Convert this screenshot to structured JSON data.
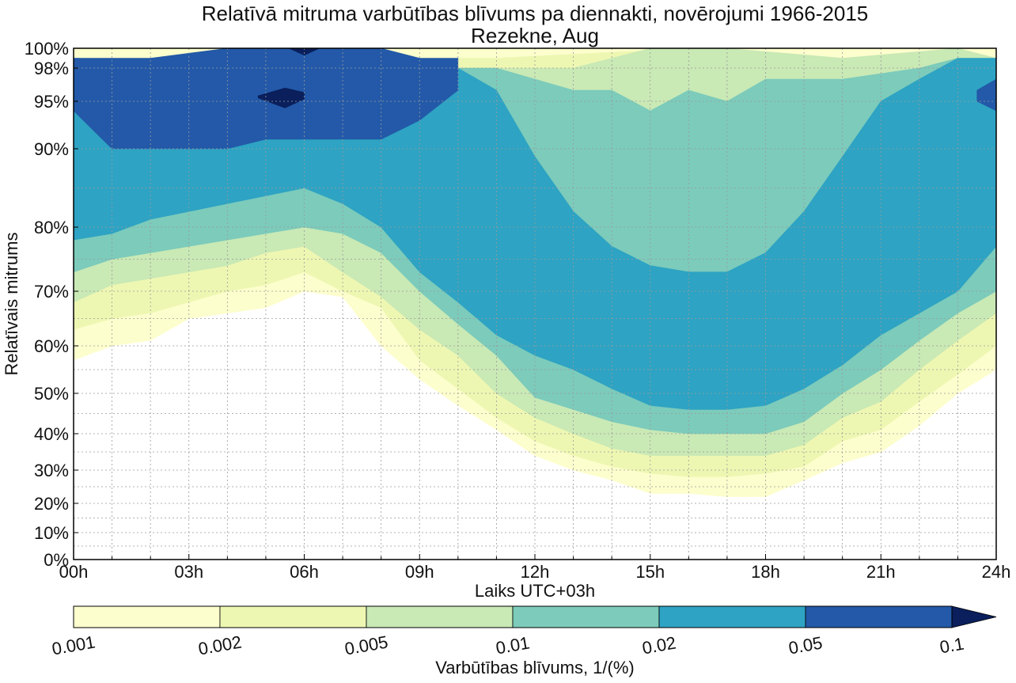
{
  "chart_data": {
    "type": "heatmap",
    "subtype": "filled-contour",
    "title": "Relatīvā mitruma varbūtības blīvums pa diennakti, novērojumi 1966-2015",
    "subtitle": "Rezekne, Aug",
    "xlabel": "Laiks UTC+03h",
    "ylabel": "Relatīvais mitrums",
    "xlim": [
      0,
      24
    ],
    "x_ticks": [
      0,
      3,
      6,
      9,
      12,
      15,
      18,
      21,
      24
    ],
    "x_tick_labels": [
      "00h",
      "03h",
      "06h",
      "09h",
      "12h",
      "15h",
      "18h",
      "21h",
      "24h"
    ],
    "y_ticks": [
      0,
      10,
      20,
      30,
      40,
      50,
      60,
      70,
      80,
      90,
      95,
      98,
      100
    ],
    "y_tick_labels": [
      "0%",
      "10%",
      "20%",
      "30%",
      "40%",
      "50%",
      "60%",
      "70%",
      "80%",
      "90%",
      "95%",
      "98%",
      "100%"
    ],
    "grid": true,
    "colorbar": {
      "label": "Varbūtības blīvums, 1/(%)",
      "levels": [
        0.001,
        0.002,
        0.005,
        0.01,
        0.02,
        0.05,
        0.1
      ],
      "level_labels": [
        "0.001",
        "0.002",
        "0.005",
        "0.01",
        "0.02",
        "0.05",
        "0.1"
      ],
      "colors": [
        "#fdfecd",
        "#eef7b2",
        "#c9e9b5",
        "#7ccbbb",
        "#2ea3c3",
        "#2359a8",
        "#0a1f5c"
      ],
      "extend": "max",
      "position": "bottom"
    },
    "contours": [
      {
        "min_density": 0.001,
        "upper": [
          [
            0,
            100
          ],
          [
            24,
            100
          ]
        ],
        "lower": [
          [
            0,
            57
          ],
          [
            1,
            60
          ],
          [
            2,
            61
          ],
          [
            3,
            65
          ],
          [
            4,
            66
          ],
          [
            5,
            67
          ],
          [
            6,
            70
          ],
          [
            7,
            69
          ],
          [
            8,
            60
          ],
          [
            9,
            53
          ],
          [
            10,
            47
          ],
          [
            11,
            41
          ],
          [
            12,
            34
          ],
          [
            13,
            30
          ],
          [
            14,
            27
          ],
          [
            15,
            23
          ],
          [
            16,
            23
          ],
          [
            17,
            22
          ],
          [
            18,
            22
          ],
          [
            19,
            27
          ],
          [
            20,
            32
          ],
          [
            21,
            35
          ],
          [
            22,
            42
          ],
          [
            23,
            50
          ],
          [
            24,
            55
          ]
        ]
      },
      {
        "min_density": 0.002,
        "upper": [
          [
            0,
            99
          ],
          [
            10,
            99
          ],
          [
            11,
            99
          ],
          [
            16,
            100
          ],
          [
            20,
            99
          ],
          [
            22,
            99
          ],
          [
            24,
            99
          ]
        ],
        "lower": [
          [
            0,
            63
          ],
          [
            1,
            65
          ],
          [
            2,
            66
          ],
          [
            3,
            68
          ],
          [
            4,
            70
          ],
          [
            5,
            71
          ],
          [
            6,
            73
          ],
          [
            7,
            70
          ],
          [
            8,
            67
          ],
          [
            9,
            57
          ],
          [
            10,
            51
          ],
          [
            11,
            44
          ],
          [
            12,
            38
          ],
          [
            13,
            34
          ],
          [
            14,
            31
          ],
          [
            15,
            29
          ],
          [
            16,
            28
          ],
          [
            17,
            28
          ],
          [
            18,
            29
          ],
          [
            19,
            31
          ],
          [
            20,
            38
          ],
          [
            21,
            41
          ],
          [
            22,
            48
          ],
          [
            23,
            54
          ],
          [
            24,
            60
          ]
        ]
      },
      {
        "min_density": 0.005,
        "upper": [
          [
            0,
            99
          ],
          [
            10,
            98
          ],
          [
            11,
            98
          ],
          [
            13,
            98
          ],
          [
            15,
            100
          ],
          [
            17,
            100
          ],
          [
            20,
            99
          ],
          [
            23,
            100
          ],
          [
            24,
            99
          ]
        ],
        "lower": [
          [
            0,
            68
          ],
          [
            1,
            71
          ],
          [
            2,
            72
          ],
          [
            3,
            73
          ],
          [
            4,
            74
          ],
          [
            5,
            76
          ],
          [
            6,
            77
          ],
          [
            7,
            73
          ],
          [
            8,
            69
          ],
          [
            9,
            63
          ],
          [
            10,
            58
          ],
          [
            11,
            50
          ],
          [
            12,
            44
          ],
          [
            13,
            40
          ],
          [
            14,
            36
          ],
          [
            15,
            34
          ],
          [
            16,
            34
          ],
          [
            17,
            34
          ],
          [
            18,
            34
          ],
          [
            19,
            37
          ],
          [
            20,
            44
          ],
          [
            21,
            48
          ],
          [
            22,
            55
          ],
          [
            23,
            61
          ],
          [
            24,
            66
          ]
        ]
      },
      {
        "min_density": 0.01,
        "upper": [
          [
            0,
            99
          ],
          [
            10,
            98
          ],
          [
            11,
            98
          ],
          [
            12,
            97
          ],
          [
            13,
            96
          ],
          [
            14,
            96
          ],
          [
            15,
            94
          ],
          [
            16,
            96
          ],
          [
            17,
            95
          ],
          [
            18,
            97
          ],
          [
            20,
            97
          ],
          [
            22,
            98
          ],
          [
            23,
            99
          ],
          [
            24,
            99
          ]
        ],
        "lower": [
          [
            0,
            73
          ],
          [
            1,
            75
          ],
          [
            2,
            76
          ],
          [
            3,
            77
          ],
          [
            4,
            78
          ],
          [
            5,
            79
          ],
          [
            6,
            80
          ],
          [
            7,
            79
          ],
          [
            8,
            76
          ],
          [
            9,
            70
          ],
          [
            10,
            64
          ],
          [
            11,
            58
          ],
          [
            12,
            49
          ],
          [
            13,
            46
          ],
          [
            14,
            43
          ],
          [
            15,
            41
          ],
          [
            16,
            40
          ],
          [
            17,
            40
          ],
          [
            18,
            40
          ],
          [
            19,
            43
          ],
          [
            20,
            50
          ],
          [
            21,
            55
          ],
          [
            22,
            61
          ],
          [
            23,
            66
          ],
          [
            24,
            70
          ]
        ]
      },
      {
        "min_density": 0.02,
        "upper": [
          [
            0,
            99
          ],
          [
            10,
            98
          ],
          [
            11,
            96
          ],
          [
            12,
            89
          ],
          [
            13,
            82
          ],
          [
            14,
            77
          ],
          [
            15,
            74
          ],
          [
            16,
            73
          ],
          [
            17,
            73
          ],
          [
            18,
            76
          ],
          [
            19,
            82
          ],
          [
            20,
            89
          ],
          [
            21,
            95
          ],
          [
            22,
            97
          ],
          [
            23,
            99
          ],
          [
            24,
            99
          ]
        ],
        "lower": [
          [
            0,
            78
          ],
          [
            1,
            79
          ],
          [
            2,
            81
          ],
          [
            3,
            82
          ],
          [
            4,
            83
          ],
          [
            5,
            84
          ],
          [
            6,
            85
          ],
          [
            7,
            83
          ],
          [
            8,
            80
          ],
          [
            9,
            73
          ],
          [
            10,
            68
          ],
          [
            11,
            62
          ],
          [
            12,
            58
          ],
          [
            13,
            55
          ],
          [
            14,
            51
          ],
          [
            15,
            47
          ],
          [
            16,
            46
          ],
          [
            17,
            46
          ],
          [
            18,
            47
          ],
          [
            19,
            51
          ],
          [
            20,
            56
          ],
          [
            21,
            62
          ],
          [
            22,
            66
          ],
          [
            23,
            70
          ],
          [
            24,
            77
          ]
        ]
      },
      {
        "min_density": 0.05,
        "upper": [
          [
            0,
            99
          ],
          [
            2,
            99
          ],
          [
            4,
            100
          ],
          [
            6,
            100
          ],
          [
            8,
            100
          ],
          [
            9,
            99
          ],
          [
            10,
            99
          ]
        ],
        "lower": [
          [
            0,
            94
          ],
          [
            1,
            90
          ],
          [
            2,
            90
          ],
          [
            3,
            90
          ],
          [
            4,
            90
          ],
          [
            5,
            91
          ],
          [
            6,
            91
          ],
          [
            7,
            91
          ],
          [
            8,
            91
          ],
          [
            9,
            93
          ],
          [
            10,
            96
          ]
        ]
      },
      {
        "min_density": 0.05,
        "upper": [
          [
            23.5,
            96
          ],
          [
            24,
            97
          ]
        ],
        "lower": [
          [
            23.5,
            95
          ],
          [
            24,
            94
          ]
        ]
      },
      {
        "min_density": 0.1,
        "upper": [
          [
            4.8,
            95.5
          ],
          [
            5.5,
            96.2
          ],
          [
            6.0,
            95.8
          ]
        ],
        "lower": [
          [
            4.8,
            95.3
          ],
          [
            5.5,
            94.3
          ],
          [
            6.0,
            95.2
          ]
        ]
      },
      {
        "min_density": 0.1,
        "upper": [
          [
            5.6,
            100
          ],
          [
            6.4,
            100
          ]
        ],
        "lower": [
          [
            5.6,
            100
          ],
          [
            6.0,
            99.3
          ],
          [
            6.4,
            100
          ]
        ]
      }
    ]
  }
}
